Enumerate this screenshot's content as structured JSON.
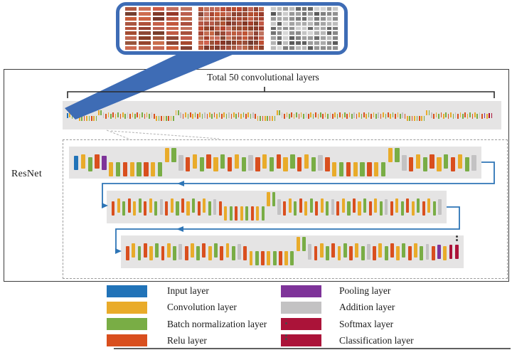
{
  "figure_texts": {
    "bracket_label": "Total 50 convolutional layers",
    "resnet_label": "ResNet"
  },
  "colors": {
    "input": "#2173b8",
    "conv": "#e9ab2a",
    "bn": "#79ad45",
    "relu": "#d94f1e",
    "pool": "#7e3399",
    "add": "#c3c2c3",
    "softmax": "#ab1339",
    "classification": "#ab1339",
    "callout": "#3e6cb5",
    "connector": "#2e75b6",
    "band": "#e5e4e4"
  },
  "layer_types": {
    "I": {
      "name": "input"
    },
    "C": {
      "name": "conv"
    },
    "B": {
      "name": "bn"
    },
    "R": {
      "name": "relu"
    },
    "P": {
      "name": "pool"
    },
    "A": {
      "name": "add"
    },
    "S": {
      "name": "softmax"
    },
    "L": {
      "name": "classification"
    }
  },
  "network": {
    "rows": [
      [
        "Im",
        "Cm",
        "Bm",
        "Rm",
        "Pm",
        "Cd",
        "Bd",
        "Rd",
        "Cd",
        "Bd",
        "Rd",
        "Cd",
        "Bd",
        "Cu",
        "Bu",
        "Am",
        "Rm",
        "Cm",
        "Bm",
        "Rm",
        "Cm",
        "Bm",
        "Rm",
        "Cm",
        "Bm",
        "Am",
        "Rm",
        "Cm",
        "Bm",
        "Rm",
        "Cm",
        "Bm",
        "Rm",
        "Cm",
        "Bm",
        "Am",
        "Rm",
        "Cd",
        "Bd",
        "Rd",
        "Cd",
        "Bd",
        "Rd",
        "Cd",
        "Bd",
        "Cu",
        "Bu",
        "Am",
        "Rm",
        "Cm",
        "Bm",
        "Rm",
        "Cm",
        "Bm",
        "Rm",
        "Cm",
        "Bm",
        "Am"
      ],
      [
        "Rm",
        "Cm",
        "Bm",
        "Rm",
        "Cm",
        "Bm",
        "Rm",
        "Cm",
        "Bm",
        "Am",
        "Rm",
        "Cm",
        "Bm",
        "Rm",
        "Cm",
        "Bm",
        "Rm",
        "Cm",
        "Bm",
        "Am",
        "Rm",
        "Cd",
        "Bd",
        "Rd",
        "Cd",
        "Bd",
        "Rd",
        "Cd",
        "Bd",
        "Cu",
        "Bu",
        "Am",
        "Rm",
        "Cm",
        "Bm",
        "Rm",
        "Cm",
        "Bm",
        "Rm",
        "Cm",
        "Bm",
        "Am",
        "Rm",
        "Cm",
        "Bm",
        "Rm",
        "Cm",
        "Bm",
        "Rm",
        "Cm",
        "Bm",
        "Am",
        "Rm",
        "Cm",
        "Bm",
        "Rm",
        "Cm",
        "Bm",
        "Rm",
        "Cm",
        "Bm",
        "Am"
      ],
      [
        "Rm",
        "Cm",
        "Bm",
        "Rm",
        "Cm",
        "Bm",
        "Rm",
        "Cm",
        "Bm",
        "Am",
        "Rm",
        "Cm",
        "Bm",
        "Rm",
        "Cm",
        "Bm",
        "Rm",
        "Cm",
        "Bm",
        "Am",
        "Rm",
        "Cd",
        "Bd",
        "Rd",
        "Cd",
        "Bd",
        "Rd",
        "Cd",
        "Bd",
        "Cu",
        "Bu",
        "Am",
        "Rm",
        "Cm",
        "Bm",
        "Rm",
        "Cm",
        "Bm",
        "Rm",
        "Cm",
        "Bm",
        "Am",
        "Rm",
        "Cm",
        "Bm",
        "Rm",
        "Cm",
        "Bm",
        "Rm",
        "Cm",
        "Bm",
        "Am",
        "Rm",
        "Pm",
        "Cm",
        "Sm",
        "Lm"
      ]
    ]
  },
  "inset_panels": [
    {
      "name": "conv-filters-coarse",
      "cols": 5,
      "rows": 9,
      "palette": "red",
      "seed": 7
    },
    {
      "name": "conv-filters-mid",
      "cols": 12,
      "rows": 9,
      "palette": "red",
      "seed": 13
    },
    {
      "name": "conv-filters-fine",
      "cols": 11,
      "rows": 9,
      "palette": "gray",
      "seed": 29
    }
  ],
  "legend": {
    "columns": [
      {
        "items": [
          {
            "label": "Input layer",
            "color": "input"
          },
          {
            "label": "Convolution layer",
            "color": "conv"
          },
          {
            "label": "Batch normalization layer",
            "color": "bn"
          },
          {
            "label": "Relu layer",
            "color": "relu"
          }
        ]
      },
      {
        "items": [
          {
            "label": "Pooling layer",
            "color": "pool"
          },
          {
            "label": "Addition layer",
            "color": "add"
          },
          {
            "label": "Softmax layer",
            "color": "softmax"
          },
          {
            "label": "Classification layer",
            "color": "classification"
          }
        ]
      }
    ]
  }
}
